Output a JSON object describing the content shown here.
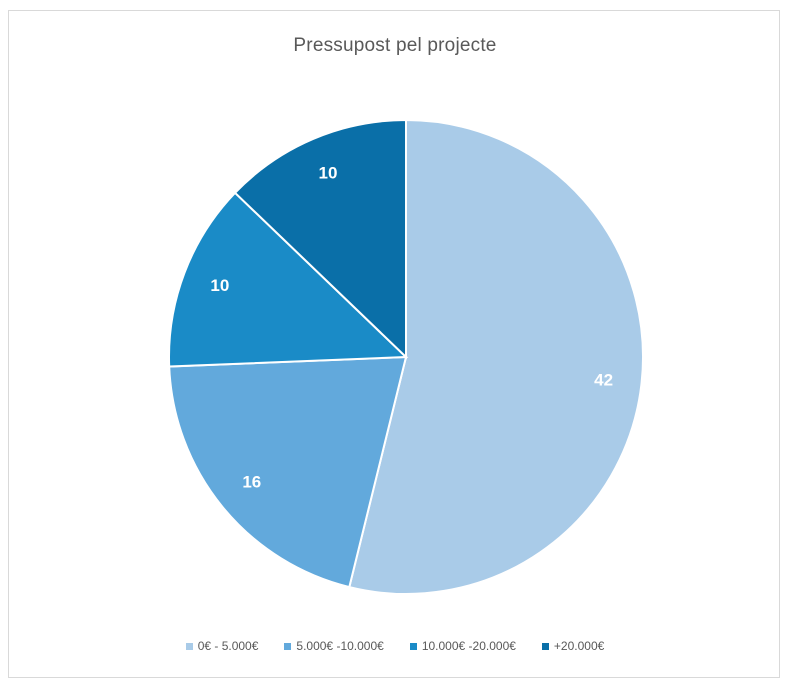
{
  "chart_data": {
    "type": "pie",
    "title": "Pressupost pel projecte",
    "categories": [
      "0€ - 5.000€",
      "5.000€ -10.000€",
      "10.000€ -20.000€",
      "+20.000€"
    ],
    "values": [
      42,
      16,
      10,
      10
    ],
    "colors": [
      "#a9cbe8",
      "#62a9dc",
      "#1a8bc7",
      "#0a6fa8"
    ],
    "legend_position": "bottom",
    "start_angle_deg": 0,
    "direction": "clockwise",
    "data_labels": true
  }
}
